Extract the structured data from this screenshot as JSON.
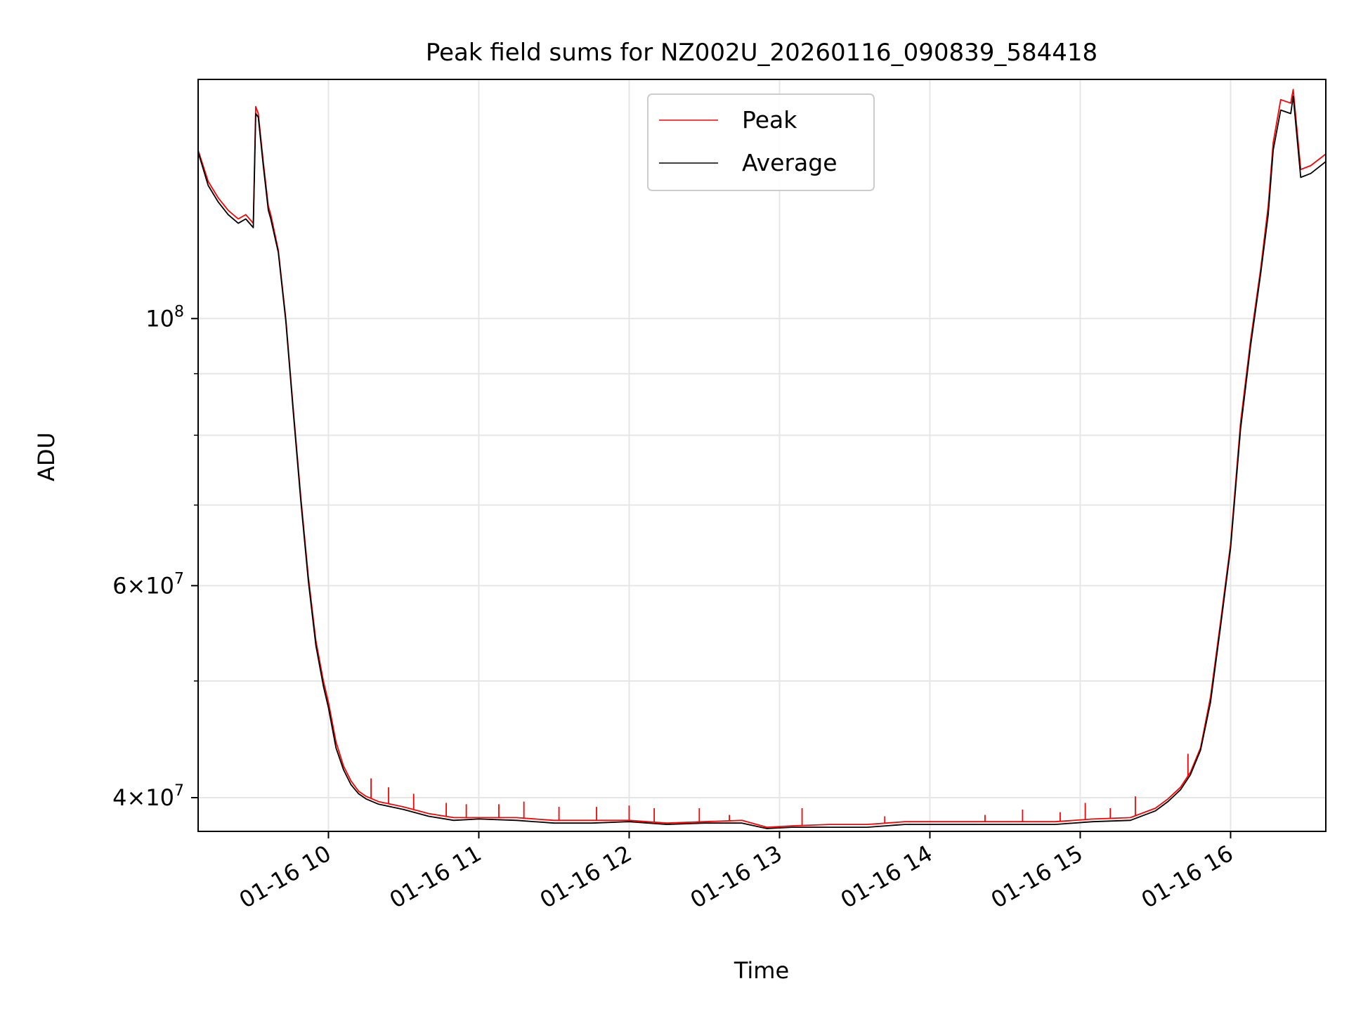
{
  "chart_data": {
    "type": "line",
    "title": "Peak field sums for NZ002U_20260116_090839_584418",
    "xlabel": "Time",
    "ylabel": "ADU",
    "yscale": "log",
    "grid": true,
    "legend_position": "top-center",
    "xlim": [
      "2026-01-16 09:08",
      "2026-01-16 16:38"
    ],
    "ylim": [
      37500000,
      158000000
    ],
    "x_ticks": [
      {
        "time": "2026-01-16 10:00",
        "label": "01-16 10"
      },
      {
        "time": "2026-01-16 11:00",
        "label": "01-16 11"
      },
      {
        "time": "2026-01-16 12:00",
        "label": "01-16 12"
      },
      {
        "time": "2026-01-16 13:00",
        "label": "01-16 13"
      },
      {
        "time": "2026-01-16 14:00",
        "label": "01-16 14"
      },
      {
        "time": "2026-01-16 15:00",
        "label": "01-16 15"
      },
      {
        "time": "2026-01-16 16:00",
        "label": "01-16 16"
      }
    ],
    "y_ticks": [
      {
        "value": 40000000,
        "mantissa": "4",
        "exponent": "7"
      },
      {
        "value": 60000000,
        "mantissa": "6",
        "exponent": "7"
      },
      {
        "value": 100000000,
        "mantissa": "",
        "exponent": "8"
      }
    ],
    "y_minor_ticks": [
      50000000,
      70000000,
      80000000,
      90000000
    ],
    "series": [
      {
        "name": "Peak",
        "color": "#ff0000",
        "x": [
          "2026-01-16 09:08",
          "2026-01-16 09:12",
          "2026-01-16 09:16",
          "2026-01-16 09:20",
          "2026-01-16 09:24",
          "2026-01-16 09:27",
          "2026-01-16 09:30",
          "2026-01-16 09:31",
          "2026-01-16 09:32",
          "2026-01-16 09:34",
          "2026-01-16 09:36",
          "2026-01-16 09:37",
          "2026-01-16 09:40",
          "2026-01-16 09:43",
          "2026-01-16 09:46",
          "2026-01-16 09:49",
          "2026-01-16 09:52",
          "2026-01-16 09:55",
          "2026-01-16 09:58",
          "2026-01-16 10:00",
          "2026-01-16 10:03",
          "2026-01-16 10:06",
          "2026-01-16 10:09",
          "2026-01-16 10:12",
          "2026-01-16 10:15",
          "2026-01-16 10:20",
          "2026-01-16 10:30",
          "2026-01-16 10:40",
          "2026-01-16 10:50",
          "2026-01-16 11:00",
          "2026-01-16 11:15",
          "2026-01-16 11:30",
          "2026-01-16 11:45",
          "2026-01-16 12:00",
          "2026-01-16 12:15",
          "2026-01-16 12:30",
          "2026-01-16 12:45",
          "2026-01-16 12:55",
          "2026-01-16 13:05",
          "2026-01-16 13:20",
          "2026-01-16 13:35",
          "2026-01-16 13:50",
          "2026-01-16 14:05",
          "2026-01-16 14:20",
          "2026-01-16 14:35",
          "2026-01-16 14:50",
          "2026-01-16 15:05",
          "2026-01-16 15:20",
          "2026-01-16 15:30",
          "2026-01-16 15:35",
          "2026-01-16 15:40",
          "2026-01-16 15:44",
          "2026-01-16 15:48",
          "2026-01-16 15:52",
          "2026-01-16 15:56",
          "2026-01-16 16:00",
          "2026-01-16 16:04",
          "2026-01-16 16:08",
          "2026-01-16 16:12",
          "2026-01-16 16:15",
          "2026-01-16 16:17",
          "2026-01-16 16:20",
          "2026-01-16 16:24",
          "2026-01-16 16:25",
          "2026-01-16 16:28",
          "2026-01-16 16:32",
          "2026-01-16 16:38"
        ],
        "values": [
          138000000,
          130000000,
          126000000,
          123000000,
          121000000,
          122000000,
          120000000,
          150000000,
          148000000,
          135000000,
          124000000,
          122000000,
          114000000,
          100000000,
          84000000,
          71000000,
          61000000,
          54000000,
          50000000,
          48000000,
          44500000,
          42500000,
          41300000,
          40500000,
          40100000,
          39700000,
          39300000,
          38800000,
          38500000,
          38500000,
          38500000,
          38300000,
          38300000,
          38300000,
          38100000,
          38200000,
          38300000,
          37800000,
          37900000,
          38000000,
          38000000,
          38200000,
          38200000,
          38200000,
          38200000,
          38200000,
          38400000,
          38500000,
          39200000,
          39900000,
          40800000,
          42000000,
          44000000,
          48500000,
          56000000,
          65000000,
          82000000,
          96000000,
          110000000,
          124000000,
          140000000,
          152000000,
          151000000,
          155000000,
          133000000,
          134000000,
          137000000
        ],
        "spikes": [
          {
            "x": "2026-01-16 10:17",
            "value": 41500000
          },
          {
            "x": "2026-01-16 10:24",
            "value": 40800000
          },
          {
            "x": "2026-01-16 10:34",
            "value": 40300000
          },
          {
            "x": "2026-01-16 10:47",
            "value": 39600000
          },
          {
            "x": "2026-01-16 10:55",
            "value": 39500000
          },
          {
            "x": "2026-01-16 11:08",
            "value": 39500000
          },
          {
            "x": "2026-01-16 11:18",
            "value": 39700000
          },
          {
            "x": "2026-01-16 11:32",
            "value": 39300000
          },
          {
            "x": "2026-01-16 11:47",
            "value": 39300000
          },
          {
            "x": "2026-01-16 12:00",
            "value": 39400000
          },
          {
            "x": "2026-01-16 12:10",
            "value": 39200000
          },
          {
            "x": "2026-01-16 12:28",
            "value": 39200000
          },
          {
            "x": "2026-01-16 12:40",
            "value": 38700000
          },
          {
            "x": "2026-01-16 13:09",
            "value": 39200000
          },
          {
            "x": "2026-01-16 13:42",
            "value": 38600000
          },
          {
            "x": "2026-01-16 14:22",
            "value": 38700000
          },
          {
            "x": "2026-01-16 14:37",
            "value": 39100000
          },
          {
            "x": "2026-01-16 14:52",
            "value": 38900000
          },
          {
            "x": "2026-01-16 15:02",
            "value": 39600000
          },
          {
            "x": "2026-01-16 15:12",
            "value": 39200000
          },
          {
            "x": "2026-01-16 15:22",
            "value": 40100000
          },
          {
            "x": "2026-01-16 15:43",
            "value": 43500000
          }
        ]
      },
      {
        "name": "Average",
        "color": "#000000",
        "x": [
          "2026-01-16 09:08",
          "2026-01-16 09:12",
          "2026-01-16 09:16",
          "2026-01-16 09:20",
          "2026-01-16 09:24",
          "2026-01-16 09:27",
          "2026-01-16 09:30",
          "2026-01-16 09:31",
          "2026-01-16 09:32",
          "2026-01-16 09:34",
          "2026-01-16 09:36",
          "2026-01-16 09:37",
          "2026-01-16 09:40",
          "2026-01-16 09:43",
          "2026-01-16 09:46",
          "2026-01-16 09:49",
          "2026-01-16 09:52",
          "2026-01-16 09:55",
          "2026-01-16 09:58",
          "2026-01-16 10:00",
          "2026-01-16 10:03",
          "2026-01-16 10:06",
          "2026-01-16 10:09",
          "2026-01-16 10:12",
          "2026-01-16 10:15",
          "2026-01-16 10:20",
          "2026-01-16 10:30",
          "2026-01-16 10:40",
          "2026-01-16 10:50",
          "2026-01-16 11:00",
          "2026-01-16 11:15",
          "2026-01-16 11:30",
          "2026-01-16 11:45",
          "2026-01-16 12:00",
          "2026-01-16 12:15",
          "2026-01-16 12:30",
          "2026-01-16 12:45",
          "2026-01-16 12:55",
          "2026-01-16 13:05",
          "2026-01-16 13:20",
          "2026-01-16 13:35",
          "2026-01-16 13:50",
          "2026-01-16 14:05",
          "2026-01-16 14:20",
          "2026-01-16 14:35",
          "2026-01-16 14:50",
          "2026-01-16 15:05",
          "2026-01-16 15:20",
          "2026-01-16 15:30",
          "2026-01-16 15:35",
          "2026-01-16 15:40",
          "2026-01-16 15:44",
          "2026-01-16 15:48",
          "2026-01-16 15:52",
          "2026-01-16 15:56",
          "2026-01-16 16:00",
          "2026-01-16 16:04",
          "2026-01-16 16:08",
          "2026-01-16 16:12",
          "2026-01-16 16:15",
          "2026-01-16 16:17",
          "2026-01-16 16:20",
          "2026-01-16 16:24",
          "2026-01-16 16:25",
          "2026-01-16 16:28",
          "2026-01-16 16:32",
          "2026-01-16 16:38"
        ],
        "values": [
          137500000,
          129000000,
          125000000,
          122000000,
          120000000,
          121000000,
          119000000,
          148000000,
          147000000,
          134000000,
          123000000,
          121000000,
          113500000,
          99500000,
          83500000,
          70500000,
          60500000,
          53500000,
          49500000,
          47500000,
          44000000,
          42200000,
          41000000,
          40300000,
          39900000,
          39500000,
          39100000,
          38600000,
          38300000,
          38400000,
          38300000,
          38100000,
          38100000,
          38200000,
          38000000,
          38100000,
          38100000,
          37700000,
          37800000,
          37800000,
          37800000,
          38000000,
          38000000,
          38000000,
          38000000,
          38000000,
          38200000,
          38300000,
          39000000,
          39700000,
          40600000,
          41800000,
          43800000,
          48000000,
          55500000,
          64500000,
          81000000,
          95000000,
          109000000,
          122000000,
          138000000,
          149000000,
          148000000,
          153000000,
          131000000,
          132000000,
          135000000
        ]
      }
    ]
  }
}
